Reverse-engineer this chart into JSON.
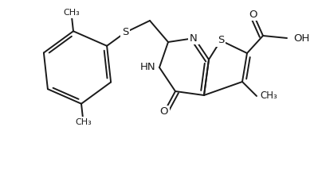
{
  "bg_color": "#ffffff",
  "line_color": "#1a1a1a",
  "figsize": [
    3.94,
    2.23
  ],
  "dpi": 100,
  "xlim": [
    0,
    394
  ],
  "ylim": [
    0,
    223
  ]
}
